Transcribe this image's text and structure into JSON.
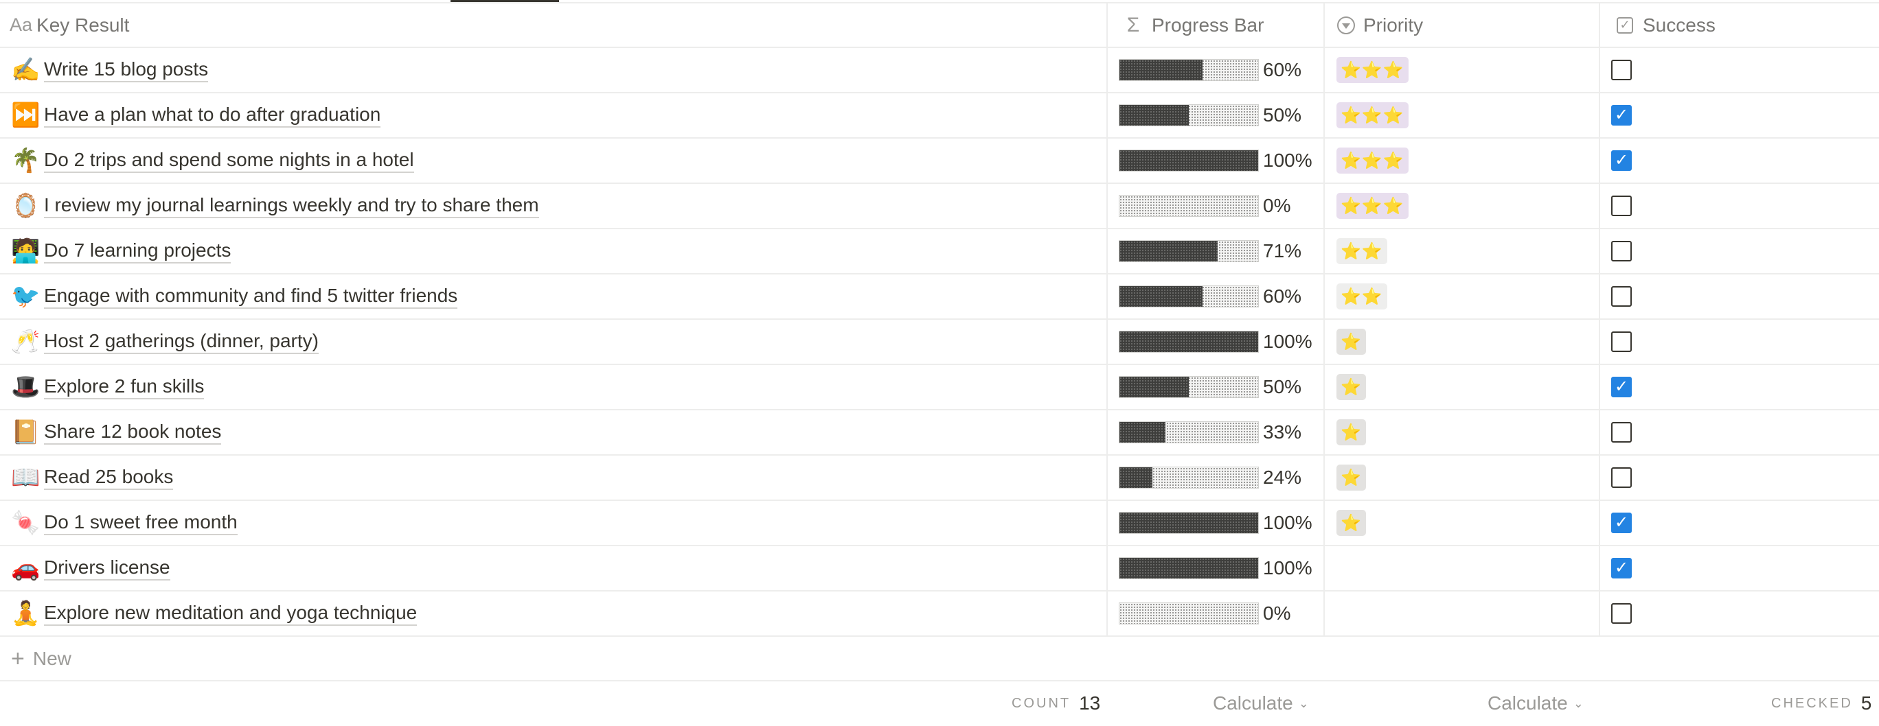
{
  "columns": {
    "key_result": {
      "icon": "Aa",
      "label": "Key Result"
    },
    "progress": {
      "icon": "Σ",
      "label": "Progress Bar"
    },
    "priority": {
      "label": "Priority"
    },
    "success": {
      "label": "Success"
    }
  },
  "rows": [
    {
      "emoji": "✍️",
      "title": "Write 15 blog posts",
      "progress": 0.6,
      "progress_label": "60%",
      "priority": "⭐⭐⭐",
      "priority_level": 3,
      "success": false
    },
    {
      "emoji": "⏭️",
      "title": "Have a plan what to do after graduation",
      "progress": 0.5,
      "progress_label": "50%",
      "priority": "⭐⭐⭐",
      "priority_level": 3,
      "success": true
    },
    {
      "emoji": "🌴",
      "title": "Do 2 trips and spend some nights in a hotel",
      "progress": 1.0,
      "progress_label": "100%",
      "priority": "⭐⭐⭐",
      "priority_level": 3,
      "success": true
    },
    {
      "emoji": "🪞",
      "title": "I review my journal learnings weekly and try to share them",
      "progress": 0.0,
      "progress_label": "0%",
      "priority": "⭐⭐⭐",
      "priority_level": 3,
      "success": false
    },
    {
      "emoji": "🧑‍💻",
      "title": "Do 7 learning projects",
      "progress": 0.71,
      "progress_label": "71%",
      "priority": "⭐⭐",
      "priority_level": 2,
      "success": false
    },
    {
      "emoji": "🐦",
      "title": "Engage with community and find 5 twitter friends",
      "progress": 0.6,
      "progress_label": "60%",
      "priority": "⭐⭐",
      "priority_level": 2,
      "success": false
    },
    {
      "emoji": "🥂",
      "title": "Host 2 gatherings (dinner, party)",
      "progress": 1.0,
      "progress_label": "100%",
      "priority": "⭐",
      "priority_level": 1,
      "success": false
    },
    {
      "emoji": "🎩",
      "title": "Explore 2 fun skills",
      "progress": 0.5,
      "progress_label": "50%",
      "priority": "⭐",
      "priority_level": 1,
      "success": true
    },
    {
      "emoji": "📔",
      "title": "Share 12 book notes",
      "progress": 0.33,
      "progress_label": "33%",
      "priority": "⭐",
      "priority_level": 1,
      "success": false
    },
    {
      "emoji": "📖",
      "title": "Read 25 books",
      "progress": 0.24,
      "progress_label": "24%",
      "priority": "⭐",
      "priority_level": 1,
      "success": false
    },
    {
      "emoji": "🍬",
      "title": "Do 1 sweet free month",
      "progress": 1.0,
      "progress_label": "100%",
      "priority": "⭐",
      "priority_level": 1,
      "success": true
    },
    {
      "emoji": "🚗",
      "title": "Drivers license",
      "progress": 1.0,
      "progress_label": "100%",
      "priority": "",
      "priority_level": 0,
      "success": true
    },
    {
      "emoji": "🧘",
      "title": "Explore new meditation and yoga technique",
      "progress": 0.0,
      "progress_label": "0%",
      "priority": "",
      "priority_level": 0,
      "success": false
    }
  ],
  "new_row": {
    "label": "New"
  },
  "footer": {
    "count_label": "COUNT",
    "count_value": "13",
    "progress_calc": "Calculate",
    "priority_calc": "Calculate",
    "checked_label": "CHECKED",
    "checked_value": "5"
  },
  "colors": {
    "checked": "#2383e2",
    "priority_high_bg": "#e8deee",
    "star": "#d9a400"
  }
}
